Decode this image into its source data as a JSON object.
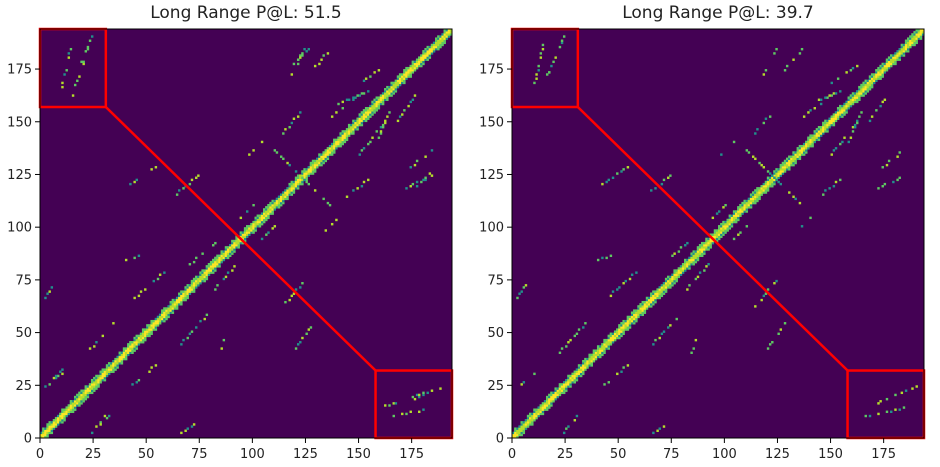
{
  "chart_data": [
    {
      "type": "heatmap",
      "title": "Long Range P@L: 51.5",
      "xlim": [
        0,
        194
      ],
      "ylim": [
        0,
        194
      ],
      "xticks": [
        0,
        25,
        50,
        75,
        100,
        125,
        150,
        175
      ],
      "yticks": [
        0,
        25,
        50,
        75,
        100,
        125,
        150,
        175
      ],
      "xlabel": "",
      "ylabel": "",
      "background_color": "#440154",
      "contact_colors": [
        "#21918c",
        "#5ec962",
        "#b5de2b",
        "#fde725"
      ],
      "highlight_color": "#ff0000",
      "highlight_boxes": [
        {
          "x": [
            0,
            31
          ],
          "y": [
            157,
            194
          ]
        },
        {
          "x": [
            158,
            194
          ],
          "y": [
            0,
            32
          ]
        }
      ],
      "diagonal_band": true,
      "contact_segments": [
        {
          "x1": 2,
          "y1": 24,
          "x2": 10,
          "y2": 30
        },
        {
          "x1": 2,
          "y1": 66,
          "x2": 6,
          "y2": 72
        },
        {
          "x1": 10,
          "y1": 166,
          "x2": 14,
          "y2": 186
        },
        {
          "x1": 18,
          "y1": 176,
          "x2": 24,
          "y2": 190
        },
        {
          "x1": 22,
          "y1": 40,
          "x2": 34,
          "y2": 54
        },
        {
          "x1": 28,
          "y1": 6,
          "x2": 32,
          "y2": 10
        },
        {
          "x1": 40,
          "y1": 84,
          "x2": 46,
          "y2": 86
        },
        {
          "x1": 42,
          "y1": 120,
          "x2": 54,
          "y2": 128
        },
        {
          "x1": 44,
          "y1": 66,
          "x2": 58,
          "y2": 78
        },
        {
          "x1": 62,
          "y1": 114,
          "x2": 74,
          "y2": 124
        },
        {
          "x1": 70,
          "y1": 82,
          "x2": 82,
          "y2": 92
        },
        {
          "x1": 94,
          "y1": 104,
          "x2": 100,
          "y2": 110
        },
        {
          "x1": 98,
          "y1": 134,
          "x2": 104,
          "y2": 140
        },
        {
          "x1": 110,
          "y1": 136,
          "x2": 124,
          "y2": 122
        },
        {
          "x1": 114,
          "y1": 144,
          "x2": 122,
          "y2": 154
        },
        {
          "x1": 118,
          "y1": 172,
          "x2": 124,
          "y2": 184
        },
        {
          "x1": 128,
          "y1": 174,
          "x2": 136,
          "y2": 184
        },
        {
          "x1": 134,
          "y1": 150,
          "x2": 150,
          "y2": 162
        },
        {
          "x1": 140,
          "y1": 158,
          "x2": 154,
          "y2": 164
        },
        {
          "x1": 150,
          "y1": 168,
          "x2": 162,
          "y2": 176
        },
        {
          "x1": 160,
          "y1": 14,
          "x2": 184,
          "y2": 22
        },
        {
          "x1": 176,
          "y1": 118,
          "x2": 184,
          "y2": 126
        }
      ]
    },
    {
      "type": "heatmap",
      "title": "Long Range P@L: 39.7",
      "xlim": [
        0,
        194
      ],
      "ylim": [
        0,
        194
      ],
      "xticks": [
        0,
        25,
        50,
        75,
        100,
        125,
        150,
        175
      ],
      "yticks": [
        0,
        25,
        50,
        75,
        100,
        125,
        150,
        175
      ],
      "xlabel": "",
      "ylabel": "",
      "background_color": "#440154",
      "contact_colors": [
        "#21918c",
        "#5ec962",
        "#b5de2b",
        "#fde725"
      ],
      "highlight_color": "#ff0000",
      "highlight_boxes": [
        {
          "x": [
            0,
            31
          ],
          "y": [
            157,
            194
          ]
        },
        {
          "x": [
            158,
            194
          ],
          "y": [
            0,
            32
          ]
        }
      ],
      "diagonal_band": true,
      "contact_segments": [
        {
          "x1": 2,
          "y1": 24,
          "x2": 10,
          "y2": 30
        },
        {
          "x1": 2,
          "y1": 66,
          "x2": 6,
          "y2": 72
        },
        {
          "x1": 10,
          "y1": 166,
          "x2": 14,
          "y2": 186
        },
        {
          "x1": 18,
          "y1": 176,
          "x2": 24,
          "y2": 190
        },
        {
          "x1": 22,
          "y1": 40,
          "x2": 34,
          "y2": 54
        },
        {
          "x1": 40,
          "y1": 84,
          "x2": 46,
          "y2": 86
        },
        {
          "x1": 42,
          "y1": 120,
          "x2": 54,
          "y2": 128
        },
        {
          "x1": 44,
          "y1": 66,
          "x2": 58,
          "y2": 78
        },
        {
          "x1": 62,
          "y1": 114,
          "x2": 74,
          "y2": 124
        },
        {
          "x1": 70,
          "y1": 82,
          "x2": 82,
          "y2": 92
        },
        {
          "x1": 94,
          "y1": 104,
          "x2": 100,
          "y2": 110
        },
        {
          "x1": 98,
          "y1": 134,
          "x2": 104,
          "y2": 140
        },
        {
          "x1": 110,
          "y1": 136,
          "x2": 124,
          "y2": 122
        },
        {
          "x1": 114,
          "y1": 144,
          "x2": 122,
          "y2": 154
        },
        {
          "x1": 118,
          "y1": 172,
          "x2": 124,
          "y2": 184
        },
        {
          "x1": 128,
          "y1": 174,
          "x2": 136,
          "y2": 184
        },
        {
          "x1": 134,
          "y1": 150,
          "x2": 150,
          "y2": 162
        },
        {
          "x1": 140,
          "y1": 158,
          "x2": 154,
          "y2": 164
        },
        {
          "x1": 150,
          "y1": 168,
          "x2": 162,
          "y2": 176
        },
        {
          "x1": 172,
          "y1": 16,
          "x2": 173,
          "y2": 17
        }
      ]
    }
  ]
}
